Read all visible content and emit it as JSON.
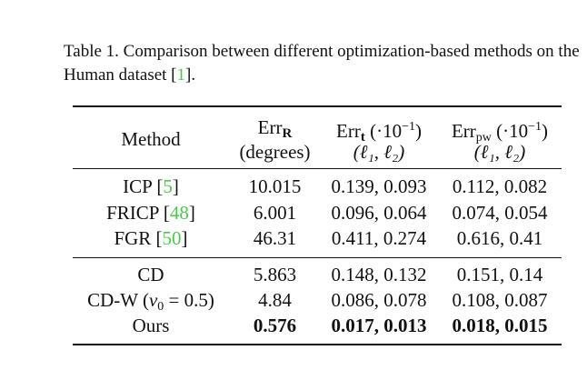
{
  "caption": {
    "text": "Table 1. Comparison between different optimization-based methods on the Human dataset [",
    "cite": "1",
    "end": "]."
  },
  "header": {
    "method": "Method",
    "err_r": {
      "base": "Err",
      "sub": "R",
      "unit": "(degrees)"
    },
    "err_t": {
      "base": "Err",
      "sub": "t",
      "scale": "(·10",
      "exp": "−1",
      "close": ")",
      "norms": "(ℓ₁, ℓ₂)"
    },
    "err_pw": {
      "base": "Err",
      "sub": "pw",
      "scale": "(·10",
      "exp": "−1",
      "close": ")",
      "norms": "(ℓ₁, ℓ₂)"
    }
  },
  "group1": [
    {
      "method": "ICP [",
      "cite": "5",
      "close": "]",
      "err_r": "10.015",
      "err_t": "0.139, 0.093",
      "err_pw": "0.112, 0.082"
    },
    {
      "method": "FRICP [",
      "cite": "48",
      "close": "]",
      "err_r": "6.001",
      "err_t": "0.096, 0.064",
      "err_pw": "0.074, 0.054"
    },
    {
      "method": "FGR [",
      "cite": "50",
      "close": "]",
      "err_r": "46.31",
      "err_t": "0.411, 0.274",
      "err_pw": "0.616, 0.41"
    }
  ],
  "group2": [
    {
      "method": "CD",
      "err_r": "5.863",
      "err_t": "0.148, 0.132",
      "err_pw": "0.151, 0.14"
    },
    {
      "method": "CD-W (",
      "nu": "ν",
      "nu_sub": "0",
      "nu_rest": " = 0.5)",
      "err_r": "4.84",
      "err_t": "0.086, 0.078",
      "err_pw": "0.108, 0.087"
    },
    {
      "method": "Ours",
      "err_r": "0.576",
      "err_t": "0.017, 0.013",
      "err_pw": "0.018, 0.015"
    }
  ]
}
